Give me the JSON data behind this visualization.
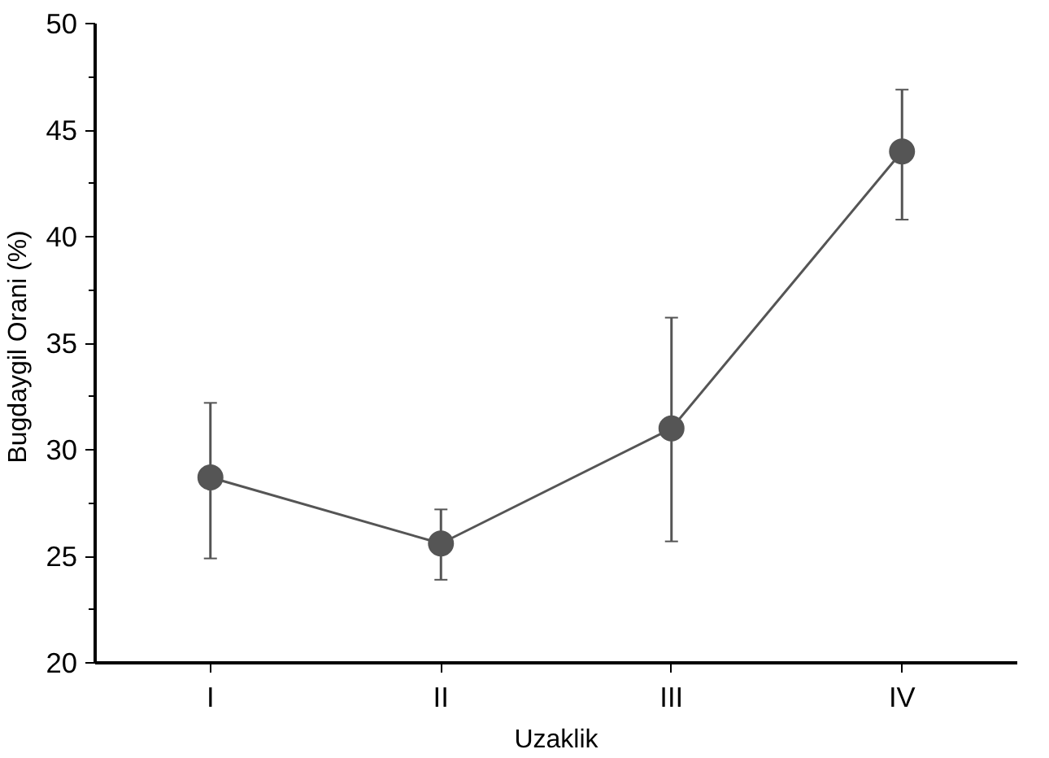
{
  "chart_data": {
    "type": "line",
    "xlabel": "Uzaklik",
    "ylabel": "Bugdaygil  Orani (%)",
    "categories": [
      "I",
      "II",
      "III",
      "IV"
    ],
    "series": [
      {
        "color": "#555555",
        "values": [
          28.7,
          25.6,
          31.0,
          44.0
        ],
        "errors": [
          [
            24.9,
            32.2
          ],
          [
            23.9,
            27.2
          ],
          [
            25.7,
            36.2
          ],
          [
            40.8,
            46.9
          ]
        ]
      }
    ],
    "ylim": [
      20,
      50
    ],
    "yticks": [
      20,
      {
        "value": 22.5,
        "label": null
      },
      25,
      {
        "value": 27.5,
        "label": null
      },
      30,
      {
        "value": 32.5,
        "label": null
      },
      35,
      {
        "value": 37.5,
        "label": null
      },
      40,
      {
        "value": 42.5,
        "label": null
      },
      45,
      {
        "value": 47.5,
        "label": null
      },
      50
    ],
    "grid": false,
    "marker": "circle",
    "line_style": "solid"
  }
}
